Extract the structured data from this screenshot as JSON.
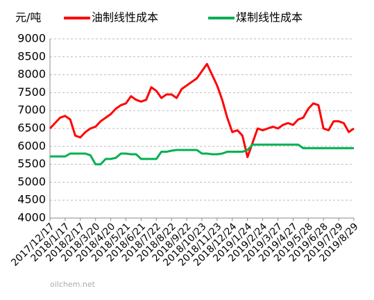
{
  "chart_data": {
    "type": "line",
    "unit_label": "元/吨",
    "watermark": "oilchem.net",
    "categories": [
      "2017/12/17",
      null,
      null,
      "2018/1/17",
      null,
      null,
      "2018/2/17",
      null,
      null,
      "2018/3/20",
      null,
      null,
      "2018/4/20",
      null,
      null,
      "2018/5/21",
      null,
      null,
      "2018/6/21",
      null,
      null,
      "2018/7/22",
      null,
      null,
      "2018/8/22",
      null,
      null,
      "2018/9/22",
      null,
      null,
      "2018/10/23",
      null,
      null,
      "2018/11/23",
      null,
      null,
      "2018/12/24",
      null,
      null,
      "2019/1/24",
      null,
      null,
      "2019/2/24",
      null,
      null,
      "2019/3/27",
      null,
      null,
      "2019/4/27",
      null,
      null,
      "2019/5/28",
      null,
      null,
      "2019/6/28",
      null,
      null,
      "2019/7/29",
      null,
      null,
      "2019/8/29"
    ],
    "series": [
      {
        "name": "油制线性成本",
        "color": "#ff0000",
        "values": [
          6500,
          6650,
          6800,
          6850,
          6750,
          6300,
          6250,
          6400,
          6500,
          6550,
          6700,
          6800,
          6900,
          7050,
          7150,
          7200,
          7400,
          7300,
          7250,
          7300,
          7650,
          7550,
          7350,
          7450,
          7450,
          7350,
          7600,
          7700,
          7800,
          7900,
          8100,
          8300,
          8000,
          7700,
          7300,
          6800,
          6400,
          6450,
          6300,
          5700,
          6100,
          6500,
          6450,
          6500,
          6550,
          6500,
          6600,
          6650,
          6600,
          6750,
          6800,
          7050,
          7200,
          7150,
          6500,
          6450,
          6700,
          6700,
          6650,
          6400,
          6500
        ]
      },
      {
        "name": "煤制线性成本",
        "color": "#00b050",
        "values": [
          5720,
          5720,
          5720,
          5720,
          5800,
          5800,
          5800,
          5800,
          5750,
          5500,
          5500,
          5650,
          5650,
          5680,
          5800,
          5800,
          5780,
          5780,
          5650,
          5650,
          5650,
          5650,
          5850,
          5850,
          5880,
          5900,
          5900,
          5900,
          5900,
          5900,
          5800,
          5800,
          5780,
          5780,
          5800,
          5850,
          5850,
          5850,
          5850,
          5900,
          6050,
          6050,
          6050,
          6050,
          6050,
          6050,
          6050,
          6050,
          6050,
          6050,
          5950,
          5950,
          5950,
          5950,
          5950,
          5950,
          5950,
          5950,
          5950,
          5950,
          5950
        ]
      }
    ],
    "ylim": [
      4000,
      9000
    ],
    "yticks": [
      4000,
      4500,
      5000,
      5500,
      6000,
      6500,
      7000,
      7500,
      8000,
      8500,
      9000
    ],
    "grid": true
  }
}
